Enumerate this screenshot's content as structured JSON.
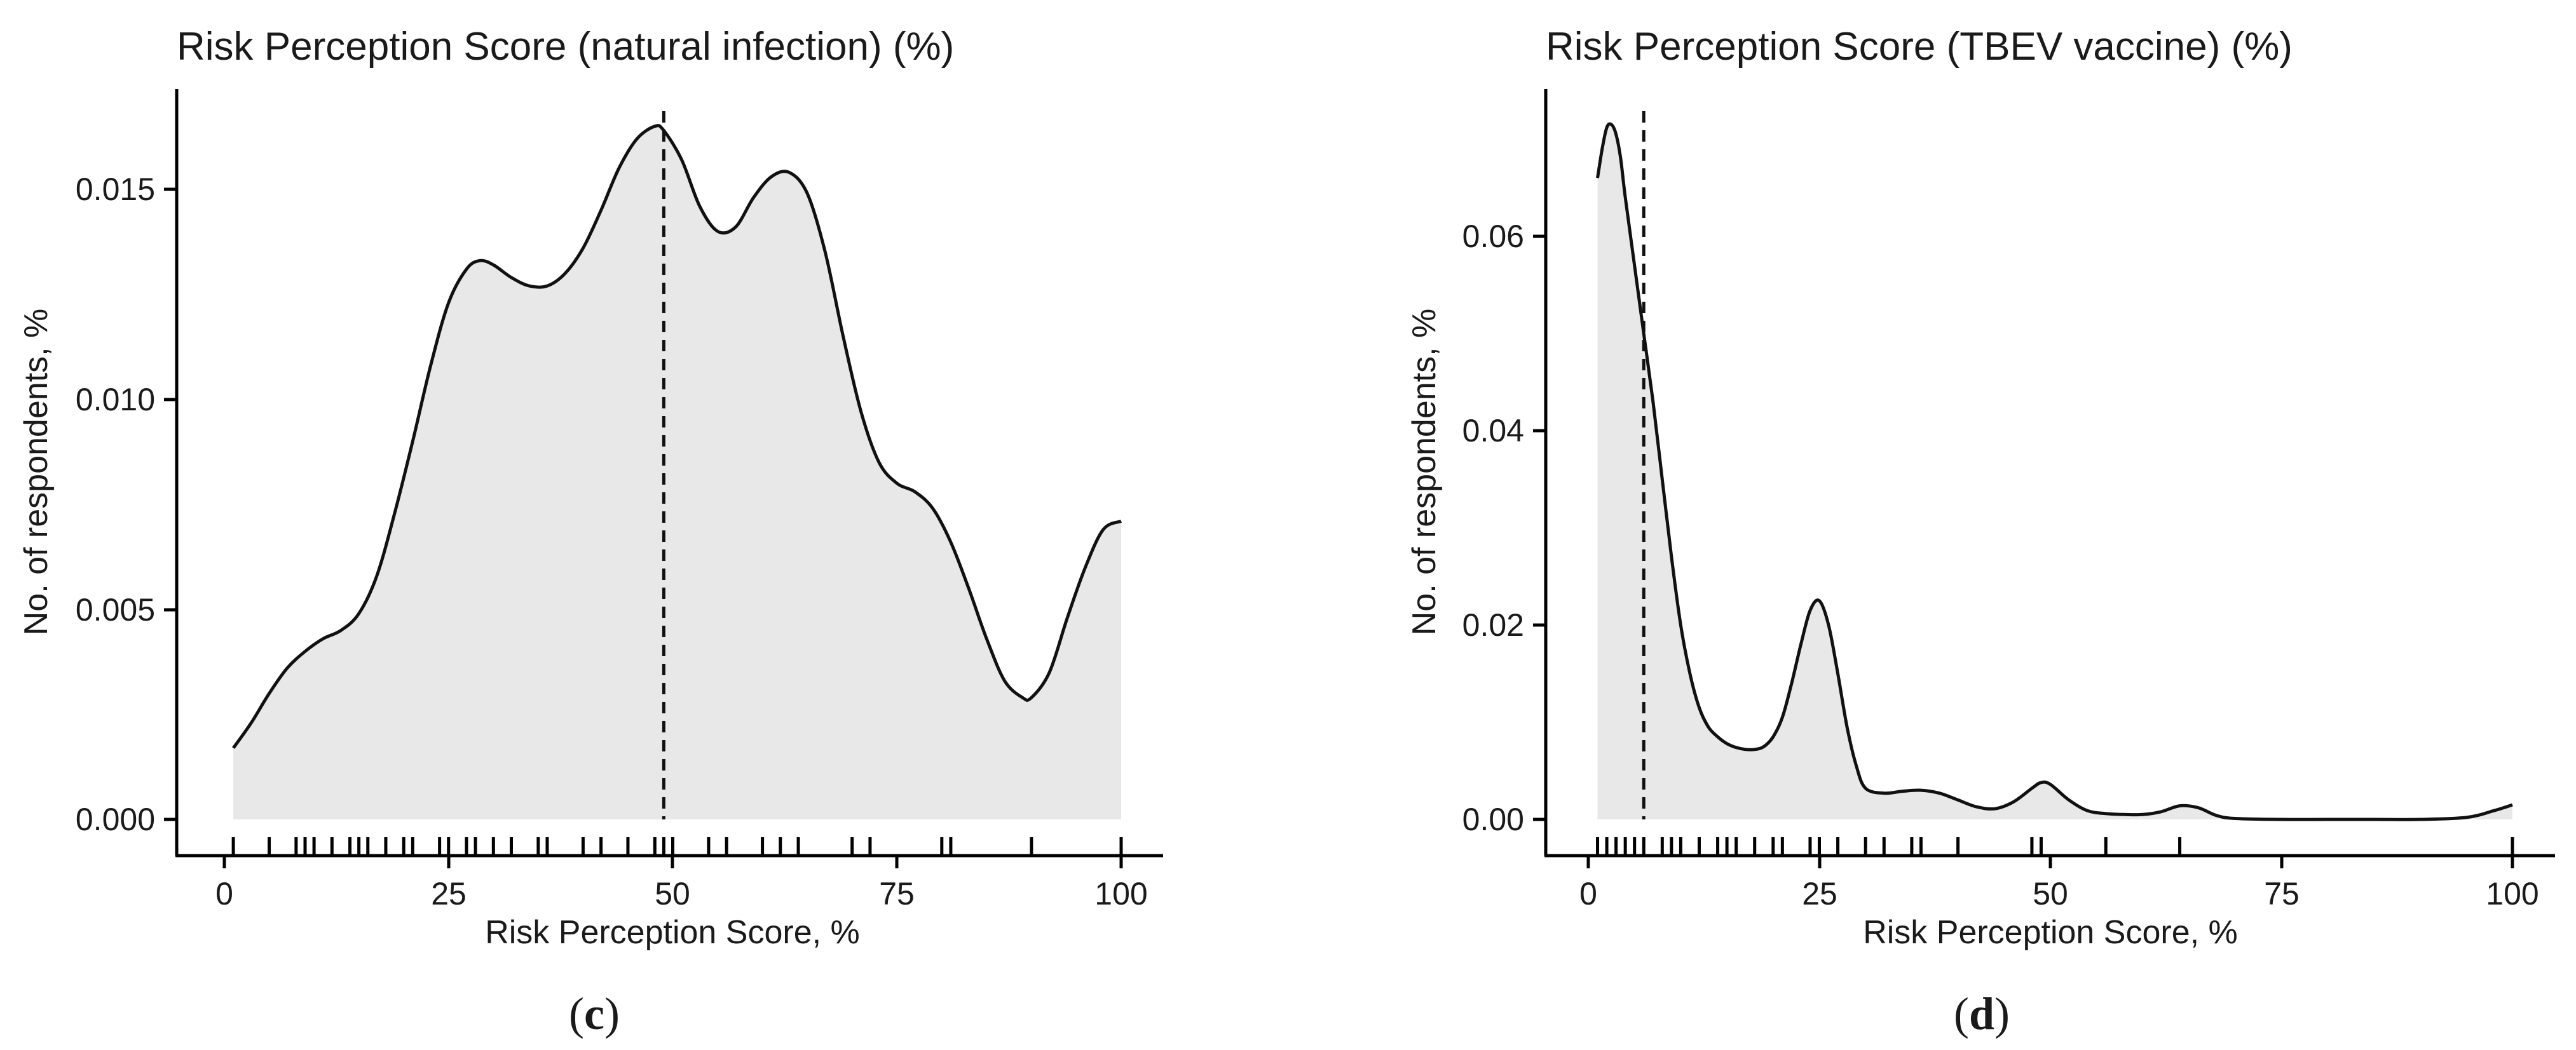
{
  "chart_data": [
    {
      "type": "area",
      "panel": "c",
      "title": "Risk Perception Score (natural infection) (%)",
      "xlabel": "Risk Perception Score, %",
      "ylabel": "No. of respondents, %",
      "xlim": [
        -5,
        105
      ],
      "ylim": [
        -0.0008,
        0.0172
      ],
      "x_ticks": [
        0,
        25,
        50,
        75,
        100
      ],
      "x_tick_labels": [
        "0",
        "25",
        "50",
        "75",
        "100"
      ],
      "y_ticks": [
        0,
        0.005,
        0.01,
        0.015
      ],
      "y_tick_labels": [
        "0.000",
        "0.005",
        "0.010",
        "0.015"
      ],
      "grid": false,
      "median": 49,
      "density": {
        "x": [
          1,
          3,
          5,
          7,
          9,
          11,
          13,
          15,
          17,
          19,
          21,
          23,
          25,
          27,
          28.5,
          30,
          32,
          34,
          36,
          38,
          40,
          42,
          44,
          46,
          48,
          49,
          51,
          53,
          55,
          57,
          59,
          61,
          63,
          65,
          67,
          69,
          71,
          73,
          75,
          77,
          79,
          81,
          83,
          85,
          87,
          89,
          90,
          92,
          94,
          96,
          98,
          100
        ],
        "y": [
          0.0017,
          0.0023,
          0.003,
          0.0036,
          0.004,
          0.0043,
          0.0045,
          0.0049,
          0.0058,
          0.0073,
          0.009,
          0.0108,
          0.0123,
          0.0131,
          0.0133,
          0.0132,
          0.0129,
          0.0127,
          0.0127,
          0.013,
          0.0136,
          0.0145,
          0.0155,
          0.0162,
          0.0165,
          0.0164,
          0.0157,
          0.0146,
          0.014,
          0.0141,
          0.0148,
          0.0153,
          0.0154,
          0.0149,
          0.0135,
          0.0115,
          0.0097,
          0.0085,
          0.008,
          0.0078,
          0.0074,
          0.0066,
          0.0055,
          0.0043,
          0.0033,
          0.0029,
          0.0029,
          0.0035,
          0.0048,
          0.006,
          0.0069,
          0.0071
        ]
      },
      "rug": [
        1,
        5,
        8,
        9,
        10,
        12,
        14,
        15,
        16,
        18,
        20,
        21,
        24,
        25,
        27,
        28,
        30,
        32,
        35,
        36,
        40,
        42,
        45,
        48,
        49,
        50,
        54,
        56,
        60,
        62,
        64,
        70,
        72,
        80,
        81,
        90,
        100
      ]
    },
    {
      "type": "area",
      "panel": "d",
      "title": "Risk Perception Score (TBEV vaccine) (%)",
      "xlabel": "Risk Perception Score, %",
      "ylabel": "No. of respondents, %",
      "xlim": [
        -4,
        105
      ],
      "ylim": [
        -0.0035,
        0.0745
      ],
      "x_ticks": [
        0,
        25,
        50,
        75,
        100
      ],
      "x_tick_labels": [
        "0",
        "25",
        "50",
        "75",
        "100"
      ],
      "y_ticks": [
        0,
        0.02,
        0.04,
        0.06
      ],
      "y_tick_labels": [
        "0.00",
        "0.02",
        "0.04",
        "0.06"
      ],
      "grid": false,
      "median": 6,
      "density": {
        "x": [
          1,
          1.5,
          2,
          2.5,
          3,
          3.5,
          4,
          5,
          6,
          7,
          8,
          9,
          10,
          11,
          12,
          13,
          14,
          15,
          16,
          17,
          18,
          19,
          20,
          21,
          22,
          23,
          24,
          25,
          26,
          27,
          28,
          29,
          30,
          32,
          34,
          36,
          38,
          40,
          42,
          44,
          46,
          48,
          49,
          50,
          52,
          54,
          56,
          58,
          60,
          62,
          64,
          66,
          68,
          70,
          75,
          80,
          85,
          90,
          95,
          98,
          100
        ],
        "y": [
          0.066,
          0.069,
          0.0712,
          0.0715,
          0.0705,
          0.068,
          0.064,
          0.057,
          0.05,
          0.043,
          0.035,
          0.027,
          0.02,
          0.015,
          0.0115,
          0.0095,
          0.0085,
          0.0078,
          0.0074,
          0.0072,
          0.0072,
          0.0075,
          0.0085,
          0.0105,
          0.014,
          0.018,
          0.0215,
          0.0225,
          0.02,
          0.015,
          0.0095,
          0.0055,
          0.0032,
          0.0027,
          0.0029,
          0.003,
          0.0027,
          0.002,
          0.0013,
          0.0011,
          0.0018,
          0.0032,
          0.0038,
          0.0036,
          0.002,
          0.0009,
          0.0006,
          0.0005,
          0.0005,
          0.0008,
          0.0014,
          0.0012,
          0.0004,
          0.0001,
          0.0,
          0.0,
          0.0,
          0.0,
          0.0002,
          0.0009,
          0.0015
        ]
      },
      "rug": [
        1,
        2,
        3,
        4,
        5,
        6,
        8,
        9,
        10,
        12,
        14,
        15,
        16,
        18,
        20,
        21,
        24,
        25,
        27,
        30,
        32,
        35,
        36,
        40,
        48,
        49,
        56,
        64,
        100
      ]
    }
  ],
  "panel_letters": [
    "c",
    "d"
  ]
}
